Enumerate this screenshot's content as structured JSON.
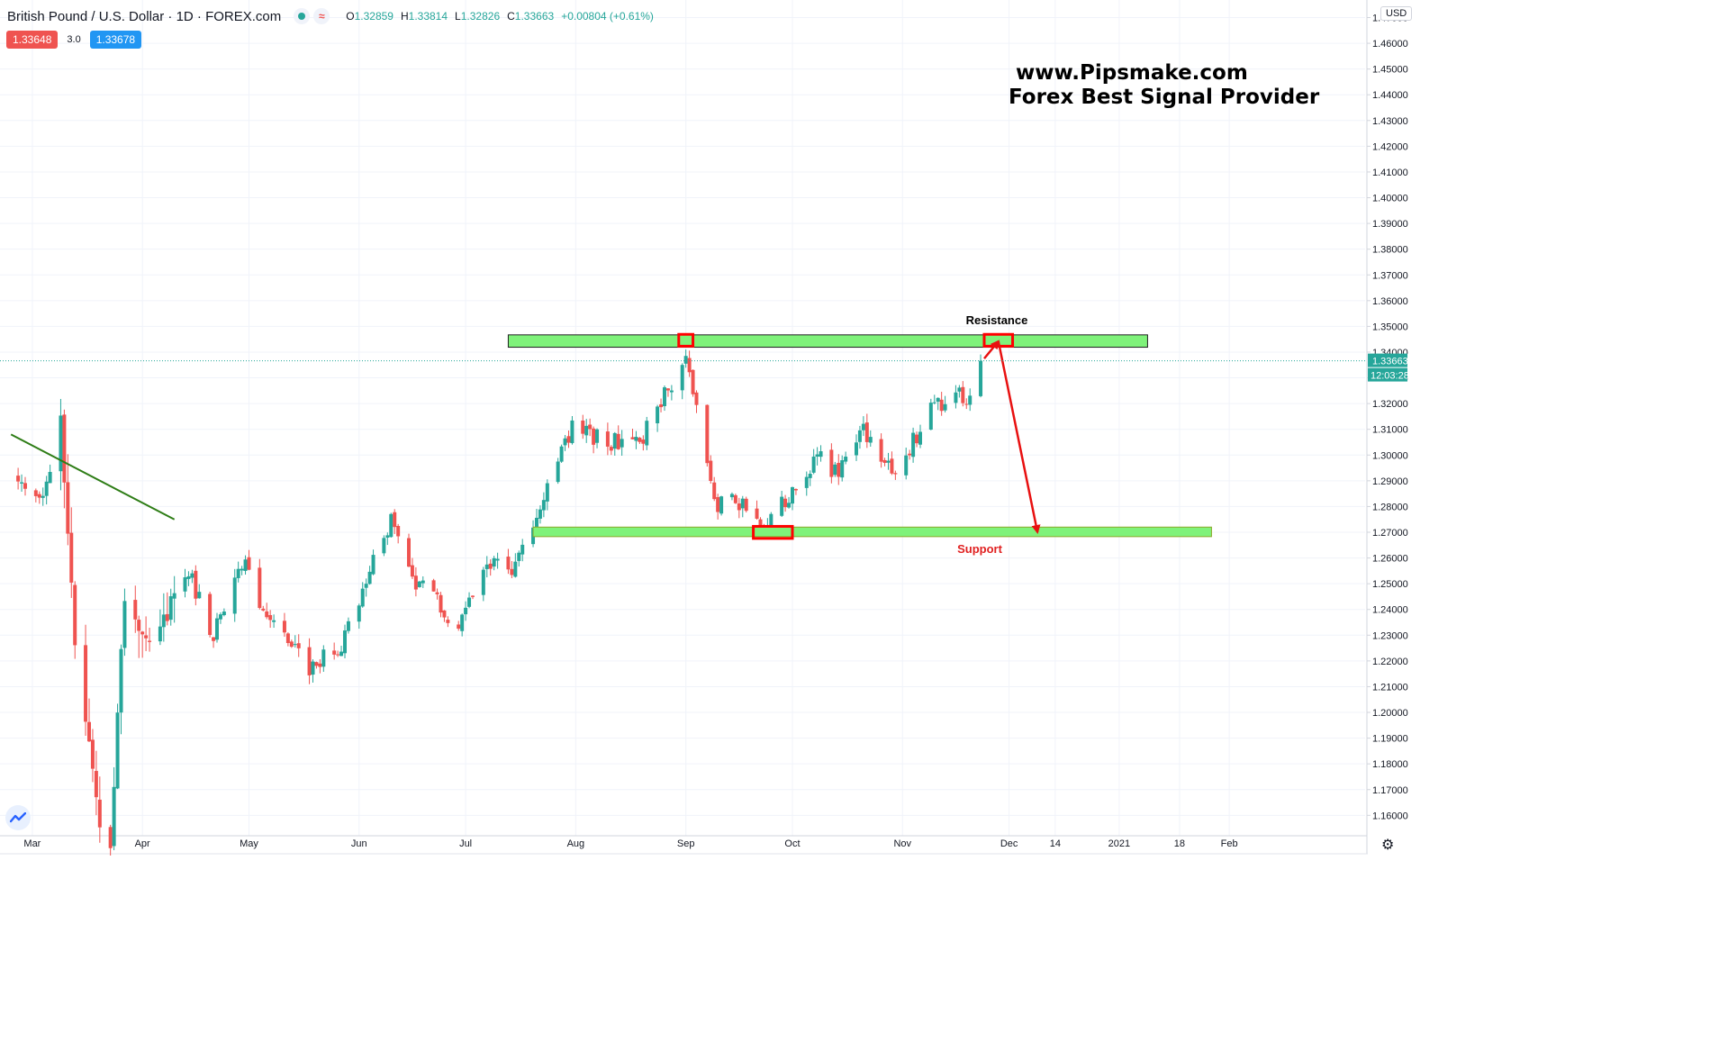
{
  "header": {
    "symbol": "British Pound / U.S. Dollar · 1D · FOREX.com",
    "ohlc": {
      "o_label": "O",
      "o": "1.32859",
      "h_label": "H",
      "h": "1.33814",
      "l_label": "L",
      "l": "1.32826",
      "c_label": "C",
      "c": "1.33663",
      "change": "+0.00804 (+0.61%)"
    }
  },
  "quote": {
    "sell": "1.33648",
    "spread": "3.0",
    "buy": "1.33678"
  },
  "watermark": {
    "line1": "www.Pipsmake.com",
    "line2": "Forex Best Signal Provider"
  },
  "currency": "USD",
  "icons": {
    "status": "market-open-dot-icon",
    "wave": "data-delay-icon",
    "logo": "tradingview-logo-icon",
    "settings": "gear-icon"
  },
  "chart_data": {
    "type": "candlestick",
    "pair": "GBPUSD",
    "timeframe": "1D",
    "y_axis": {
      "ticks": [
        "1.47000",
        "1.46000",
        "1.45000",
        "1.44000",
        "1.43000",
        "1.42000",
        "1.41000",
        "1.40000",
        "1.39000",
        "1.38000",
        "1.37000",
        "1.36000",
        "1.35000",
        "1.34000",
        "1.33000",
        "1.32000",
        "1.31000",
        "1.30000",
        "1.29000",
        "1.28000",
        "1.27000",
        "1.26000",
        "1.25000",
        "1.24000",
        "1.23000",
        "1.22000",
        "1.21000",
        "1.20000",
        "1.19000",
        "1.18000",
        "1.17000",
        "1.16000"
      ],
      "range": [
        1.155,
        1.473
      ],
      "side": "right"
    },
    "x_axis": {
      "ticks": [
        "Mar",
        "Apr",
        "May",
        "Jun",
        "Jul",
        "Aug",
        "Sep",
        "Oct",
        "Nov",
        "Dec",
        "14",
        "2021",
        "18",
        "Feb"
      ]
    },
    "last_price": "1.33663",
    "countdown": "12:03:28",
    "colors": {
      "up": "#26a69a",
      "down": "#ef5350",
      "zone": "#7ff27a",
      "marker": "#ff0000",
      "trendline": "#2e7d16"
    },
    "keypoints": [
      {
        "t": "2020-02-26",
        "p": 1.288
      },
      {
        "t": "2020-03-04",
        "p": 1.281
      },
      {
        "t": "2020-03-09",
        "p": 1.313
      },
      {
        "t": "2020-03-13",
        "p": 1.228
      },
      {
        "t": "2020-03-20",
        "p": 1.158
      },
      {
        "t": "2020-03-23",
        "p": 1.151
      },
      {
        "t": "2020-03-27",
        "p": 1.246
      },
      {
        "t": "2020-04-03",
        "p": 1.226
      },
      {
        "t": "2020-04-14",
        "p": 1.255
      },
      {
        "t": "2020-04-21",
        "p": 1.23
      },
      {
        "t": "2020-04-30",
        "p": 1.259
      },
      {
        "t": "2020-05-06",
        "p": 1.236
      },
      {
        "t": "2020-05-18",
        "p": 1.218
      },
      {
        "t": "2020-05-27",
        "p": 1.227
      },
      {
        "t": "2020-06-10",
        "p": 1.275
      },
      {
        "t": "2020-06-16",
        "p": 1.252
      },
      {
        "t": "2020-06-22",
        "p": 1.246
      },
      {
        "t": "2020-06-29",
        "p": 1.232
      },
      {
        "t": "2020-07-09",
        "p": 1.262
      },
      {
        "t": "2020-07-14",
        "p": 1.256
      },
      {
        "t": "2020-07-31",
        "p": 1.31
      },
      {
        "t": "2020-08-12",
        "p": 1.305
      },
      {
        "t": "2020-08-20",
        "p": 1.308
      },
      {
        "t": "2020-09-01",
        "p": 1.339
      },
      {
        "t": "2020-09-10",
        "p": 1.279
      },
      {
        "t": "2020-09-14",
        "p": 1.285
      },
      {
        "t": "2020-09-23",
        "p": 1.271
      },
      {
        "t": "2020-10-09",
        "p": 1.3
      },
      {
        "t": "2020-10-14",
        "p": 1.292
      },
      {
        "t": "2020-10-20",
        "p": 1.311
      },
      {
        "t": "2020-10-30",
        "p": 1.294
      },
      {
        "t": "2020-11-09",
        "p": 1.317
      },
      {
        "t": "2020-11-11",
        "p": 1.319
      },
      {
        "t": "2020-11-17",
        "p": 1.325
      },
      {
        "t": "2020-11-19",
        "p": 1.321
      },
      {
        "t": "2020-11-23",
        "p": 1.336
      }
    ],
    "trendline": {
      "from": {
        "t": "2020-02-24",
        "p": 1.308
      },
      "to": {
        "t": "2020-04-10",
        "p": 1.275
      }
    },
    "zones": [
      {
        "name": "resistance-zone",
        "label": "Resistance",
        "from": "2020-07-13",
        "to": "2021-01-09",
        "top": 1.3467,
        "bottom": 1.3419
      },
      {
        "name": "support-zone",
        "label": "Support",
        "from": "2020-07-20",
        "to": "2021-01-27",
        "top": 1.272,
        "bottom": 1.2683
      }
    ],
    "markers": [
      {
        "name": "resistance-touch-sep",
        "from": "2020-08-30",
        "to": "2020-09-03",
        "top": 1.3469,
        "bottom": 1.3423
      },
      {
        "name": "resistance-touch-nov",
        "from": "2020-11-24",
        "to": "2020-12-02",
        "top": 1.3469,
        "bottom": 1.3423
      },
      {
        "name": "support-touch-sep",
        "from": "2020-09-20",
        "to": "2020-10-01",
        "top": 1.2723,
        "bottom": 1.2676
      }
    ],
    "projection": [
      {
        "t": "2020-11-24",
        "p": 1.3375
      },
      {
        "t": "2020-11-28",
        "p": 1.3442
      },
      {
        "t": "2020-12-09",
        "p": 1.27
      }
    ]
  }
}
